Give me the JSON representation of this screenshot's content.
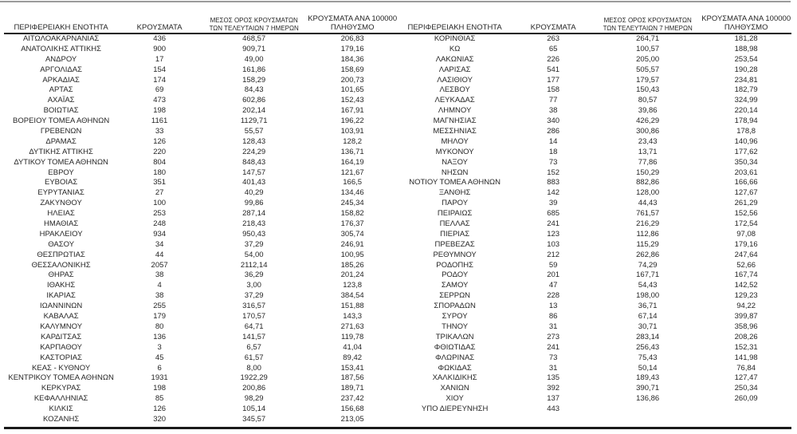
{
  "table": {
    "headers": {
      "region": "ΠΕΡΙΦΕΡΕΙΑΚΗ ΕΝΟΤΗΤΑ",
      "cases": "ΚΡΟΥΣΜΑΤΑ",
      "avg7_line1": "ΜΕΣΟΣ ΟΡΟΣ ΚΡΟΥΣΜΑΤΩΝ",
      "avg7_line2": "ΤΩΝ ΤΕΛΕΥΤΑΙΩΝ 7 ΗΜΕΡΩΝ",
      "per100k_line1": "ΚΡΟΥΣΜΑΤΑ ΑΝΑ 100000",
      "per100k_line2": "ΠΛΗΘΥΣΜΟ"
    },
    "left_rows": [
      [
        "ΑΙΤΩΛΟΑΚΑΡΝΑΝΙΑΣ",
        "436",
        "468,57",
        "206,83"
      ],
      [
        "ΑΝΑΤΟΛΙΚΗΣ ΑΤΤΙΚΗΣ",
        "900",
        "909,71",
        "179,16"
      ],
      [
        "ΑΝΔΡΟΥ",
        "17",
        "49,00",
        "184,36"
      ],
      [
        "ΑΡΓΟΛΙΔΑΣ",
        "154",
        "161,86",
        "158,69"
      ],
      [
        "ΑΡΚΑΔΙΑΣ",
        "174",
        "158,29",
        "200,73"
      ],
      [
        "ΑΡΤΑΣ",
        "69",
        "84,43",
        "101,65"
      ],
      [
        "ΑΧΑΪΑΣ",
        "473",
        "602,86",
        "152,43"
      ],
      [
        "ΒΟΙΩΤΙΑΣ",
        "198",
        "202,14",
        "167,91"
      ],
      [
        "ΒΟΡΕΙΟΥ ΤΟΜΕΑ ΑΘΗΝΩΝ",
        "1161",
        "1129,71",
        "196,22"
      ],
      [
        "ΓΡΕΒΕΝΩΝ",
        "33",
        "55,57",
        "103,91"
      ],
      [
        "ΔΡΑΜΑΣ",
        "126",
        "128,43",
        "128,2"
      ],
      [
        "ΔΥΤΙΚΗΣ ΑΤΤΙΚΗΣ",
        "220",
        "224,29",
        "136,71"
      ],
      [
        "ΔΥΤΙΚΟΥ ΤΟΜΕΑ ΑΘΗΝΩΝ",
        "804",
        "848,43",
        "164,19"
      ],
      [
        "ΕΒΡΟΥ",
        "180",
        "147,57",
        "121,67"
      ],
      [
        "ΕΥΒΟΙΑΣ",
        "351",
        "401,43",
        "166,5"
      ],
      [
        "ΕΥΡΥΤΑΝΙΑΣ",
        "27",
        "40,29",
        "134,46"
      ],
      [
        "ΖΑΚΥΝΘΟΥ",
        "100",
        "99,86",
        "245,34"
      ],
      [
        "ΗΛΕΙΑΣ",
        "253",
        "287,14",
        "158,82"
      ],
      [
        "ΗΜΑΘΙΑΣ",
        "248",
        "218,43",
        "176,37"
      ],
      [
        "ΗΡΑΚΛΕΙΟΥ",
        "934",
        "950,43",
        "305,74"
      ],
      [
        "ΘΑΣΟΥ",
        "34",
        "37,29",
        "246,91"
      ],
      [
        "ΘΕΣΠΡΩΤΙΑΣ",
        "44",
        "54,00",
        "100,95"
      ],
      [
        "ΘΕΣΣΑΛΟΝΙΚΗΣ",
        "2057",
        "2112,14",
        "185,26"
      ],
      [
        "ΘΗΡΑΣ",
        "38",
        "36,29",
        "201,24"
      ],
      [
        "ΙΘΑΚΗΣ",
        "4",
        "3,00",
        "123,8"
      ],
      [
        "ΙΚΑΡΙΑΣ",
        "38",
        "37,29",
        "384,54"
      ],
      [
        "ΙΩΑΝΝΙΝΩΝ",
        "255",
        "316,57",
        "151,88"
      ],
      [
        "ΚΑΒΑΛΑΣ",
        "179",
        "170,57",
        "143,3"
      ],
      [
        "ΚΑΛΥΜΝΟΥ",
        "80",
        "64,71",
        "271,63"
      ],
      [
        "ΚΑΡΔΙΤΣΑΣ",
        "136",
        "141,57",
        "119,78"
      ],
      [
        "ΚΑΡΠΑΘΟΥ",
        "3",
        "6,57",
        "41,04"
      ],
      [
        "ΚΑΣΤΟΡΙΑΣ",
        "45",
        "61,57",
        "89,42"
      ],
      [
        "ΚΕΑΣ - ΚΥΘΝΟΥ",
        "6",
        "8,00",
        "153,41"
      ],
      [
        "ΚΕΝΤΡΙΚΟΥ ΤΟΜΕΑ ΑΘΗΝΩΝ",
        "1931",
        "1922,29",
        "187,56"
      ],
      [
        "ΚΕΡΚΥΡΑΣ",
        "198",
        "200,86",
        "189,71"
      ],
      [
        "ΚΕΦΑΛΛΗΝΙΑΣ",
        "85",
        "98,29",
        "237,42"
      ],
      [
        "ΚΙΛΚΙΣ",
        "126",
        "105,14",
        "156,68"
      ],
      [
        "ΚΟΖΑΝΗΣ",
        "320",
        "345,57",
        "213,05"
      ]
    ],
    "right_rows": [
      [
        "ΚΟΡΙΝΘΙΑΣ",
        "263",
        "264,71",
        "181,28"
      ],
      [
        "ΚΩ",
        "65",
        "100,57",
        "188,98"
      ],
      [
        "ΛΑΚΩΝΙΑΣ",
        "226",
        "205,00",
        "253,54"
      ],
      [
        "ΛΑΡΙΣΑΣ",
        "541",
        "505,57",
        "190,28"
      ],
      [
        "ΛΑΣΙΘΙΟΥ",
        "177",
        "179,57",
        "234,81"
      ],
      [
        "ΛΕΣΒΟΥ",
        "158",
        "150,43",
        "182,79"
      ],
      [
        "ΛΕΥΚΑΔΑΣ",
        "77",
        "80,57",
        "324,99"
      ],
      [
        "ΛΗΜΝΟΥ",
        "38",
        "39,86",
        "220,14"
      ],
      [
        "ΜΑΓΝΗΣΙΑΣ",
        "340",
        "426,29",
        "178,94"
      ],
      [
        "ΜΕΣΣΗΝΙΑΣ",
        "286",
        "300,86",
        "178,8"
      ],
      [
        "ΜΗΛΟΥ",
        "14",
        "23,43",
        "140,96"
      ],
      [
        "ΜΥΚΟΝΟΥ",
        "18",
        "13,71",
        "177,62"
      ],
      [
        "ΝΑΞΟΥ",
        "73",
        "77,86",
        "350,34"
      ],
      [
        "ΝΗΣΩΝ",
        "152",
        "150,29",
        "203,61"
      ],
      [
        "ΝΟΤΙΟΥ ΤΟΜΕΑ ΑΘΗΝΩΝ",
        "883",
        "882,86",
        "166,66"
      ],
      [
        "ΞΑΝΘΗΣ",
        "142",
        "128,00",
        "127,67"
      ],
      [
        "ΠΑΡΟΥ",
        "39",
        "44,43",
        "261,29"
      ],
      [
        "ΠΕΙΡΑΙΩΣ",
        "685",
        "761,57",
        "152,56"
      ],
      [
        "ΠΕΛΛΑΣ",
        "241",
        "216,29",
        "172,54"
      ],
      [
        "ΠΙΕΡΙΑΣ",
        "123",
        "112,86",
        "97,08"
      ],
      [
        "ΠΡΕΒΕΖΑΣ",
        "103",
        "115,29",
        "179,16"
      ],
      [
        "ΡΕΘΥΜΝΟΥ",
        "212",
        "262,86",
        "247,64"
      ],
      [
        "ΡΟΔΟΠΗΣ",
        "59",
        "74,29",
        "52,66"
      ],
      [
        "ΡΟΔΟΥ",
        "201",
        "167,71",
        "167,74"
      ],
      [
        "ΣΑΜΟΥ",
        "47",
        "54,43",
        "142,52"
      ],
      [
        "ΣΕΡΡΩΝ",
        "228",
        "198,00",
        "129,23"
      ],
      [
        "ΣΠΟΡΑΔΩΝ",
        "13",
        "36,71",
        "94,22"
      ],
      [
        "ΣΥΡΟΥ",
        "86",
        "67,14",
        "399,87"
      ],
      [
        "ΤΗΝΟΥ",
        "31",
        "30,71",
        "358,96"
      ],
      [
        "ΤΡΙΚΑΛΩΝ",
        "273",
        "283,14",
        "208,26"
      ],
      [
        "ΦΘΙΩΤΙΔΑΣ",
        "241",
        "256,43",
        "152,31"
      ],
      [
        "ΦΛΩΡΙΝΑΣ",
        "73",
        "75,43",
        "141,98"
      ],
      [
        "ΦΩΚΙΔΑΣ",
        "31",
        "50,14",
        "76,84"
      ],
      [
        "ΧΑΛΚΙΔΙΚΗΣ",
        "135",
        "189,43",
        "127,47"
      ],
      [
        "ΧΑΝΙΩΝ",
        "392",
        "390,71",
        "250,34"
      ],
      [
        "ΧΙΟΥ",
        "137",
        "136,86",
        "260,09"
      ],
      [
        "ΥΠΟ ΔΙΕΡΕΥΝΗΣΗ",
        "443",
        "",
        ""
      ]
    ]
  },
  "colors": {
    "border_black": "#1a1a1a",
    "top_rule_gray": "#9b9b9b",
    "text": "#262626"
  }
}
